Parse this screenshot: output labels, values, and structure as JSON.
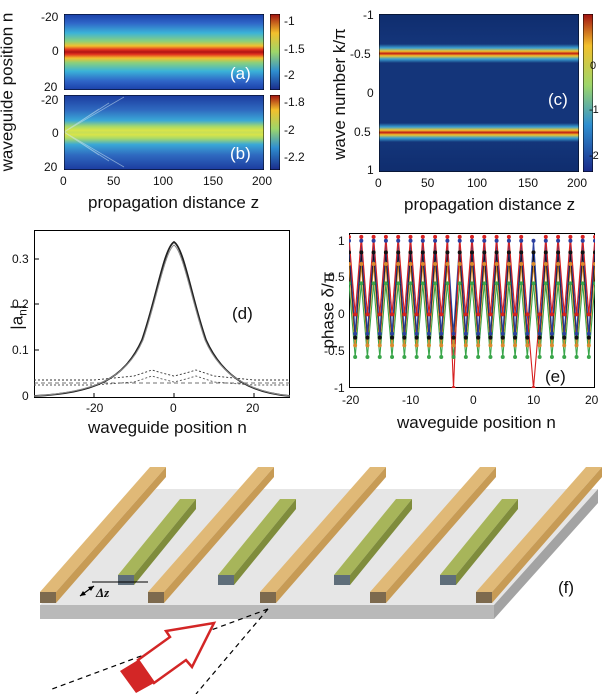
{
  "panel_a": {
    "label": "(a)",
    "colorbar_ticks": [
      "-1",
      "-1.5",
      "-2"
    ]
  },
  "panel_b": {
    "label": "(b)",
    "colorbar_ticks": [
      "-1.8",
      "-2",
      "-2.2"
    ]
  },
  "panel_c": {
    "label": "(c)",
    "colorbar_ticks": [
      "0",
      "-1",
      "-2"
    ]
  },
  "panel_d": {
    "label": "(d)"
  },
  "panel_e": {
    "label": "(e)"
  },
  "panel_f": {
    "label": "(f)",
    "dz": "Δz"
  },
  "ab_ylabel": "waveguide position n",
  "ab_xlabel": "propagation distance z",
  "c_ylabel": "wave number k/π",
  "c_xlabel": "propagation distance z",
  "d_ylabel": "|a",
  "d_ylabel_sub": "n",
  "d_ylabel_end": "|",
  "d_xlabel": "waveguide position n",
  "e_ylabel": "phase δ/π",
  "e_xlabel": "waveguide position n",
  "a_yticks": [
    "-20",
    "0",
    "20"
  ],
  "b_yticks": [
    "-20",
    "0",
    "20"
  ],
  "ab_xticks": [
    "0",
    "50",
    "100",
    "150",
    "200"
  ],
  "c_yticks": [
    "-1",
    "-0.5",
    "0",
    "0.5",
    "1"
  ],
  "c_xticks": [
    "0",
    "50",
    "100",
    "150",
    "200"
  ],
  "d_yticks": [
    "0.3",
    "0.2",
    "0.1",
    "0"
  ],
  "d_xticks": [
    "-20",
    "0",
    "20"
  ],
  "e_yticks": [
    "1",
    "0.5",
    "0",
    "-0.5",
    "-1"
  ],
  "e_xticks": [
    "-20",
    "-10",
    "0",
    "10",
    "20"
  ],
  "chart_data": [
    {
      "type": "heatmap",
      "panel": "(a)",
      "xlabel": "propagation distance z",
      "ylabel": "waveguide position n",
      "xlim": [
        0,
        200
      ],
      "ylim": [
        -20,
        20
      ],
      "colorbar": [
        -2,
        -1
      ]
    },
    {
      "type": "heatmap",
      "panel": "(b)",
      "xlabel": "propagation distance z",
      "ylabel": "waveguide position n",
      "xlim": [
        0,
        200
      ],
      "ylim": [
        -20,
        20
      ],
      "colorbar": [
        -2.2,
        -1.8
      ]
    },
    {
      "type": "heatmap",
      "panel": "(c)",
      "xlabel": "propagation distance z",
      "ylabel": "wave number k/π",
      "xlim": [
        0,
        200
      ],
      "ylim": [
        -1,
        1
      ],
      "colorbar": [
        -2,
        0
      ]
    },
    {
      "type": "line",
      "panel": "(d)",
      "xlabel": "waveguide position n",
      "ylabel": "|an|",
      "xlim": [
        -32,
        32
      ],
      "ylim": [
        0,
        0.37
      ],
      "series": [
        {
          "x": [
            -32,
            -24,
            -20,
            -16,
            -12,
            -8,
            -6,
            -4,
            -2,
            0,
            2,
            4,
            6,
            8,
            12,
            16,
            20,
            24,
            32
          ],
          "values": [
            0.003,
            0.01,
            0.015,
            0.024,
            0.04,
            0.08,
            0.12,
            0.19,
            0.28,
            0.36,
            0.28,
            0.19,
            0.12,
            0.08,
            0.04,
            0.024,
            0.015,
            0.01,
            0.003
          ]
        }
      ]
    },
    {
      "type": "line",
      "panel": "(e)",
      "xlabel": "waveguide position n",
      "ylabel": "phase δ/π",
      "xlim": [
        -20,
        20
      ],
      "ylim": [
        -1,
        1
      ]
    }
  ]
}
